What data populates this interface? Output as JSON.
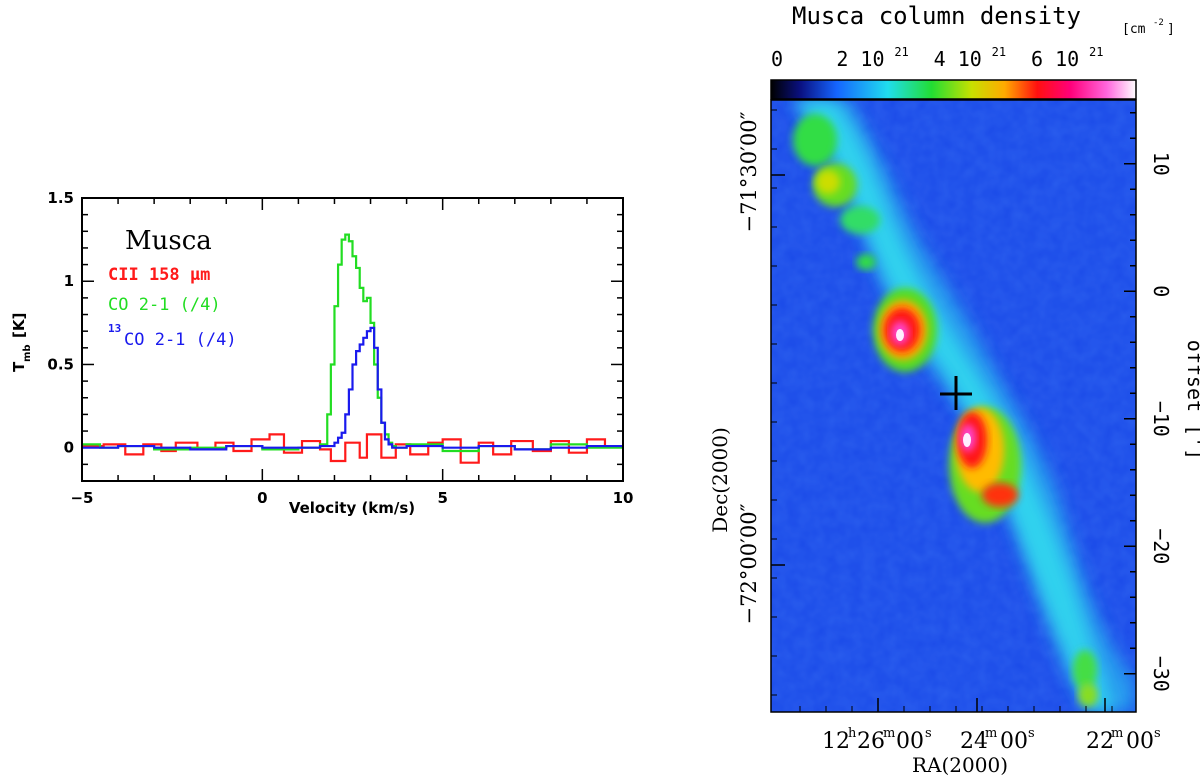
{
  "chart_data": [
    {
      "type": "line",
      "subtype": "step",
      "title": "Musca",
      "xlabel": "Velocity (km/s)",
      "ylabel": "T",
      "ylabel_sub": "mb",
      "ylabel_unit": "[K]",
      "xlim": [
        -5,
        10
      ],
      "ylim": [
        -0.2,
        1.5
      ],
      "xticks": [
        "-5",
        "0",
        "5",
        "10"
      ],
      "yticks": [
        "0",
        "0.5",
        "1",
        "1.5"
      ],
      "legend": [
        {
          "label": "CII 158 μm",
          "color": "#ff1a1a"
        },
        {
          "label": "CO 2-1 (/4)",
          "color": "#22dd22"
        },
        {
          "label_sup": "13",
          "label": "CO 2-1 (/4)",
          "color": "#1a1aee"
        }
      ],
      "series": [
        {
          "name": "CII 158 μm",
          "color": "#ff1a1a",
          "x": [
            -5,
            -4.4,
            -3.8,
            -3.3,
            -2.8,
            -2.4,
            -1.8,
            -1.3,
            -0.8,
            -0.3,
            0.2,
            0.6,
            1.1,
            1.6,
            1.9,
            2.3,
            2.7,
            2.9,
            3.3,
            3.7,
            4.1,
            4.6,
            5.0,
            5.5,
            6.0,
            6.4,
            6.9,
            7.5,
            8.0,
            8.5,
            9.0,
            9.5,
            10
          ],
          "y": [
            0.01,
            0.02,
            -0.04,
            0.02,
            -0.02,
            0.03,
            -0.01,
            0.03,
            -0.02,
            0.05,
            0.08,
            -0.03,
            0.04,
            -0.01,
            -0.08,
            0.03,
            -0.06,
            0.08,
            -0.06,
            0.02,
            -0.04,
            0.03,
            0.05,
            -0.09,
            0.03,
            -0.04,
            0.04,
            -0.02,
            0.04,
            -0.03,
            0.05,
            0.01,
            0.01
          ]
        },
        {
          "name": "CO 2-1 (/4)",
          "color": "#22dd22",
          "x": [
            -5,
            -4.5,
            -4.0,
            -3.0,
            -2.0,
            -1.0,
            0.0,
            1.0,
            1.6,
            1.8,
            1.9,
            2.0,
            2.1,
            2.2,
            2.3,
            2.4,
            2.5,
            2.6,
            2.7,
            2.8,
            2.9,
            3.0,
            3.1,
            3.2,
            3.3,
            3.4,
            3.5,
            3.6,
            3.7,
            4.0,
            5.0,
            6.0,
            7.0,
            8.0,
            9.0,
            10
          ],
          "y": [
            0.02,
            0.0,
            0.01,
            -0.01,
            0.0,
            0.01,
            -0.01,
            0.0,
            0.02,
            0.2,
            0.5,
            0.85,
            1.1,
            1.25,
            1.28,
            1.24,
            1.15,
            1.08,
            0.96,
            0.88,
            0.9,
            0.75,
            0.5,
            0.3,
            0.15,
            0.08,
            0.03,
            0.01,
            0.0,
            0.02,
            -0.02,
            0.01,
            -0.01,
            0.02,
            0.0,
            0.01
          ]
        },
        {
          "name": "13CO 2-1 (/4)",
          "color": "#1a1aee",
          "x": [
            -5,
            -4.0,
            -3.0,
            -2.0,
            -1.0,
            0.0,
            1.0,
            1.6,
            2.0,
            2.1,
            2.2,
            2.3,
            2.4,
            2.5,
            2.6,
            2.7,
            2.8,
            2.9,
            3.0,
            3.1,
            3.2,
            3.3,
            3.4,
            3.5,
            3.6,
            4.0,
            5.0,
            6.0,
            7.0,
            8.0,
            9.0,
            10
          ],
          "y": [
            0.0,
            0.01,
            0.0,
            -0.01,
            0.01,
            0.0,
            0.0,
            0.01,
            0.03,
            0.06,
            0.09,
            0.2,
            0.35,
            0.5,
            0.58,
            0.62,
            0.66,
            0.7,
            0.72,
            0.6,
            0.35,
            0.15,
            0.05,
            0.02,
            0.0,
            0.01,
            0.0,
            0.01,
            -0.01,
            0.0,
            0.01,
            0.0
          ]
        }
      ]
    },
    {
      "type": "heatmap",
      "title": "Musca column density",
      "colorbar_unit": "[cm",
      "colorbar_unit_sup": "-2",
      "colorbar_unit_close": "]",
      "colorbar_range": [
        0,
        7.5e+21
      ],
      "colorbar_ticks": [
        {
          "value": 0,
          "label": "0",
          "exp": ""
        },
        {
          "value": 2e+21,
          "label": "2 10",
          "exp": "21"
        },
        {
          "value": 4e+21,
          "label": "4 10",
          "exp": "21"
        },
        {
          "value": 6e+21,
          "label": "6 10",
          "exp": "21"
        }
      ],
      "xlabel": "RA(2000)",
      "ylabel": "Dec(2000)",
      "y2label": "offset [']",
      "xticks": [
        {
          "h": "12",
          "hs": "h",
          "m": "26",
          "ms": "m",
          "s": "00",
          "ss": "s"
        },
        {
          "m": "24",
          "ms": "m",
          "s": "00",
          "ss": "s"
        },
        {
          "m": "22",
          "ms": "m",
          "s": "00",
          "ss": "s"
        }
      ],
      "yticks_left": [
        "−71°30′00″",
        "−72°00′00″"
      ],
      "yticks_right": [
        "10",
        "0",
        "−10",
        "−20",
        "−30"
      ],
      "offset_range": [
        -33,
        15
      ],
      "marker": {
        "type": "cross",
        "label": "+",
        "ra_offset": 0,
        "dec_offset": -8
      }
    }
  ]
}
